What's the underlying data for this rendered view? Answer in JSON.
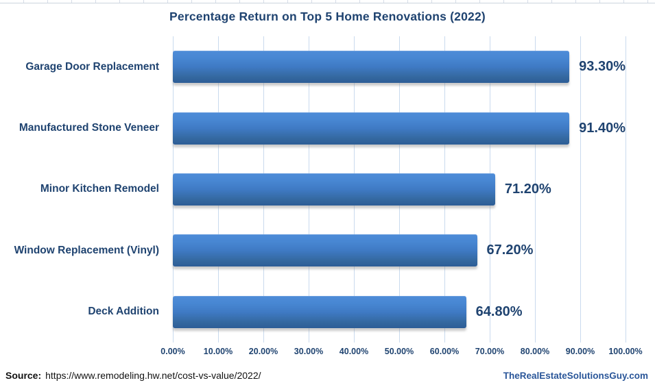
{
  "title": "Percentage Return on Top 5 Home Renovations (2022)",
  "chart_data": {
    "type": "bar",
    "orientation": "horizontal",
    "title": "Percentage Return on Top 5 Home Renovations (2022)",
    "categories": [
      "Garage Door Replacement",
      "Manufactured Stone Veneer",
      "Minor Kitchen Remodel",
      "Window Replacement (Vinyl)",
      "Deck Addition"
    ],
    "values": [
      93.3,
      91.4,
      71.2,
      67.2,
      64.8
    ],
    "data_labels": [
      "93.30%",
      "91.40%",
      "71.20%",
      "67.20%",
      "64.80%"
    ],
    "xlabel": "",
    "ylabel": "",
    "xlim": [
      0,
      100
    ],
    "x_ticks": [
      "0.00%",
      "10.00%",
      "20.00%",
      "30.00%",
      "40.00%",
      "50.00%",
      "60.00%",
      "70.00%",
      "80.00%",
      "90.00%",
      "100.00%"
    ],
    "grid": true,
    "legend": false
  },
  "footer": {
    "source_label": "Source:",
    "source_url": "https://www.remodeling.hw.net/cost-vs-value/2022/",
    "brand": "TheRealEstateSolutionsGuy.com"
  },
  "colors": {
    "text": "#1f4370",
    "bar_gradient_top": "#4e8cd8",
    "bar_gradient_bottom": "#2d5d97",
    "gridline": "#c9daee",
    "brand_text": "#2a5699",
    "source_text": "#111111"
  }
}
